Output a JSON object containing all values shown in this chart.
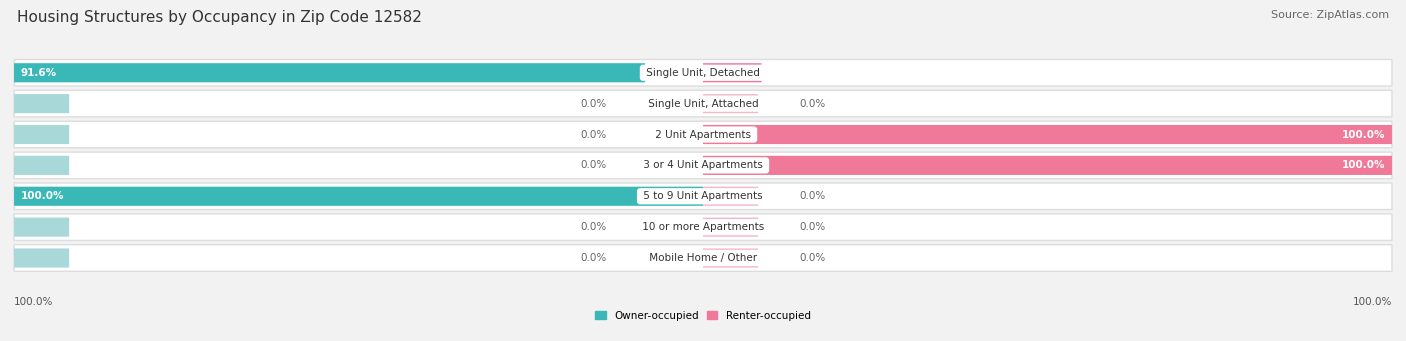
{
  "title": "Housing Structures by Occupancy in Zip Code 12582",
  "source": "Source: ZipAtlas.com",
  "categories": [
    "Single Unit, Detached",
    "Single Unit, Attached",
    "2 Unit Apartments",
    "3 or 4 Unit Apartments",
    "5 to 9 Unit Apartments",
    "10 or more Apartments",
    "Mobile Home / Other"
  ],
  "owner_values": [
    91.6,
    0.0,
    0.0,
    0.0,
    100.0,
    0.0,
    0.0
  ],
  "renter_values": [
    8.5,
    0.0,
    100.0,
    100.0,
    0.0,
    0.0,
    0.0
  ],
  "owner_color": "#3ab8b8",
  "renter_color": "#f07898",
  "owner_label": "Owner-occupied",
  "renter_label": "Renter-occupied",
  "background_color": "#f2f2f2",
  "row_bg_color": "#ffffff",
  "title_fontsize": 11,
  "source_fontsize": 8,
  "value_fontsize": 7.5,
  "cat_fontsize": 7.5,
  "axis_label_fontsize": 7.5
}
